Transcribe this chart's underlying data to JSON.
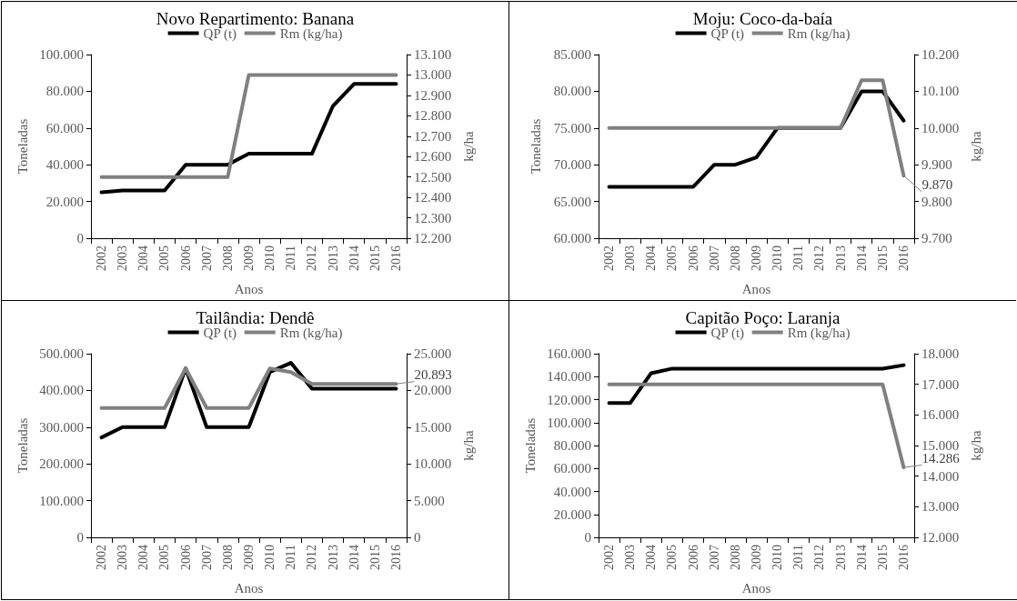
{
  "chart_data": [
    {
      "type": "line",
      "title": "Novo Repartimento: Banana",
      "xlabel": "Anos",
      "ylabel": "Toneladas",
      "y2label": "kg/ha",
      "legend": "top",
      "categories": [
        "2002",
        "2003",
        "2004",
        "2005",
        "2006",
        "2007",
        "2008",
        "2009",
        "2010",
        "2011",
        "2012",
        "2013",
        "2014",
        "2015",
        "2016"
      ],
      "ylim": [
        0,
        100000
      ],
      "yticks": [
        {
          "value": 0,
          "label": "0"
        },
        {
          "value": 20000,
          "label": "20.000"
        },
        {
          "value": 40000,
          "label": "40.000"
        },
        {
          "value": 60000,
          "label": "60.000"
        },
        {
          "value": 80000,
          "label": "80.000"
        },
        {
          "value": 100000,
          "label": "100.000"
        }
      ],
      "y2lim": [
        12200,
        13100
      ],
      "y2ticks": [
        {
          "value": 12200,
          "label": "12.200"
        },
        {
          "value": 12300,
          "label": "12.300"
        },
        {
          "value": 12400,
          "label": "12.400"
        },
        {
          "value": 12500,
          "label": "12.500"
        },
        {
          "value": 12600,
          "label": "12.600"
        },
        {
          "value": 12700,
          "label": "12.700"
        },
        {
          "value": 12800,
          "label": "12.800"
        },
        {
          "value": 12900,
          "label": "12.900"
        },
        {
          "value": 13000,
          "label": "13.000"
        },
        {
          "value": 13100,
          "label": "13.100"
        }
      ],
      "series": [
        {
          "name": "QP (t)",
          "color": "#000000",
          "values": [
            25000,
            26000,
            26000,
            26000,
            40000,
            40000,
            40000,
            46000,
            46000,
            46000,
            46000,
            72000,
            84000,
            84000,
            84000
          ]
        },
        {
          "name": "Rm (kg/ha)",
          "color": "#808080",
          "axis": "y2",
          "values": [
            12500,
            12500,
            12500,
            12500,
            12500,
            12500,
            12500,
            13000,
            13000,
            13000,
            13000,
            13000,
            13000,
            13000,
            13000
          ]
        }
      ]
    },
    {
      "type": "line",
      "title": "Moju: Coco-da-baía",
      "xlabel": "Anos",
      "ylabel": "Toneladas",
      "y2label": "kg/ha",
      "legend": "top",
      "categories": [
        "2002",
        "2003",
        "2004",
        "2005",
        "2006",
        "2007",
        "2008",
        "2009",
        "2010",
        "2011",
        "2012",
        "2013",
        "2014",
        "2015",
        "2016"
      ],
      "ylim": [
        60000,
        85000
      ],
      "yticks": [
        {
          "value": 60000,
          "label": "60.000"
        },
        {
          "value": 65000,
          "label": "65.000"
        },
        {
          "value": 70000,
          "label": "70.000"
        },
        {
          "value": 75000,
          "label": "75.000"
        },
        {
          "value": 80000,
          "label": "80.000"
        },
        {
          "value": 85000,
          "label": "85.000"
        }
      ],
      "y2lim": [
        9700,
        10200
      ],
      "y2ticks": [
        {
          "value": 9700,
          "label": "9.700"
        },
        {
          "value": 9800,
          "label": "9.800"
        },
        {
          "value": 9900,
          "label": "9.900"
        },
        {
          "value": 10000,
          "label": "10.000"
        },
        {
          "value": 10100,
          "label": "10.100"
        },
        {
          "value": 10200,
          "label": "10.200"
        }
      ],
      "series": [
        {
          "name": "QP (t)",
          "color": "#000000",
          "values": [
            67000,
            67000,
            67000,
            67000,
            67000,
            70000,
            70000,
            71000,
            75000,
            75000,
            75000,
            75000,
            80000,
            80000,
            76000
          ]
        },
        {
          "name": "Rm (kg/ha)",
          "color": "#808080",
          "axis": "y2",
          "values": [
            10000,
            10000,
            10000,
            10000,
            10000,
            10000,
            10000,
            10000,
            10000,
            10000,
            10000,
            10000,
            10130,
            10130,
            9870
          ],
          "value_labels": [
            null,
            null,
            null,
            null,
            null,
            null,
            null,
            null,
            null,
            null,
            null,
            null,
            null,
            null,
            "9.870"
          ]
        }
      ]
    },
    {
      "type": "line",
      "title": "Tailândia: Dendê",
      "xlabel": "Anos",
      "ylabel": "Toneladas",
      "y2label": "kg/ha",
      "legend": "top",
      "categories": [
        "2002",
        "2003",
        "2004",
        "2005",
        "2006",
        "2007",
        "2008",
        "2009",
        "2010",
        "2011",
        "2012",
        "2013",
        "2014",
        "2015",
        "2016"
      ],
      "ylim": [
        0,
        500000
      ],
      "yticks": [
        {
          "value": 0,
          "label": "0"
        },
        {
          "value": 100000,
          "label": "100.000"
        },
        {
          "value": 200000,
          "label": "200.000"
        },
        {
          "value": 300000,
          "label": "300.000"
        },
        {
          "value": 400000,
          "label": "400.000"
        },
        {
          "value": 500000,
          "label": "500.000"
        }
      ],
      "y2lim": [
        0,
        25000
      ],
      "y2ticks": [
        {
          "value": 0,
          "label": "0"
        },
        {
          "value": 5000,
          "label": "5.000"
        },
        {
          "value": 10000,
          "label": "10.000"
        },
        {
          "value": 15000,
          "label": "15.000"
        },
        {
          "value": 20000,
          "label": "20.000"
        },
        {
          "value": 25000,
          "label": "25.000"
        }
      ],
      "series": [
        {
          "name": "QP (t)",
          "color": "#000000",
          "values": [
            272000,
            300000,
            300000,
            300000,
            460000,
            300000,
            300000,
            300000,
            450000,
            475000,
            405000,
            405000,
            405000,
            405000,
            405000
          ]
        },
        {
          "name": "Rm (kg/ha)",
          "color": "#808080",
          "axis": "y2",
          "values": [
            17600,
            17600,
            17600,
            17600,
            23000,
            17600,
            17600,
            17600,
            23000,
            22500,
            20893,
            20893,
            20893,
            20893,
            20893
          ],
          "value_labels": [
            null,
            null,
            null,
            null,
            null,
            null,
            null,
            null,
            null,
            null,
            null,
            null,
            null,
            null,
            "20.893"
          ]
        }
      ]
    },
    {
      "type": "line",
      "title": "Capitão Poço: Laranja",
      "xlabel": "Anos",
      "ylabel": "Toneladas",
      "y2label": "kg/ha",
      "legend": "top",
      "categories": [
        "2002",
        "2003",
        "2004",
        "2005",
        "2006",
        "2007",
        "2008",
        "2009",
        "2010",
        "2011",
        "2012",
        "2013",
        "2014",
        "2015",
        "2016"
      ],
      "ylim": [
        0,
        160000
      ],
      "yticks": [
        {
          "value": 0,
          "label": "0"
        },
        {
          "value": 20000,
          "label": "20.000"
        },
        {
          "value": 40000,
          "label": "40.000"
        },
        {
          "value": 60000,
          "label": "60.000"
        },
        {
          "value": 80000,
          "label": "80.000"
        },
        {
          "value": 100000,
          "label": "100.000"
        },
        {
          "value": 120000,
          "label": "120.000"
        },
        {
          "value": 140000,
          "label": "140.000"
        },
        {
          "value": 160000,
          "label": "160.000"
        }
      ],
      "y2lim": [
        12000,
        18000
      ],
      "y2ticks": [
        {
          "value": 12000,
          "label": "12.000"
        },
        {
          "value": 13000,
          "label": "13.000"
        },
        {
          "value": 14000,
          "label": "14.000"
        },
        {
          "value": 15000,
          "label": "15.000"
        },
        {
          "value": 16000,
          "label": "16.000"
        },
        {
          "value": 17000,
          "label": "17.000"
        },
        {
          "value": 18000,
          "label": "18.000"
        }
      ],
      "series": [
        {
          "name": "QP (t)",
          "color": "#000000",
          "values": [
            117000,
            117000,
            143000,
            147000,
            147000,
            147000,
            147000,
            147000,
            147000,
            147000,
            147000,
            147000,
            147000,
            147000,
            150000
          ]
        },
        {
          "name": "Rm (kg/ha)",
          "color": "#808080",
          "axis": "y2",
          "values": [
            17000,
            17000,
            17000,
            17000,
            17000,
            17000,
            17000,
            17000,
            17000,
            17000,
            17000,
            17000,
            17000,
            17000,
            14286
          ],
          "value_labels": [
            null,
            null,
            null,
            null,
            null,
            null,
            null,
            null,
            null,
            null,
            null,
            null,
            null,
            null,
            "14.286"
          ]
        }
      ]
    }
  ]
}
